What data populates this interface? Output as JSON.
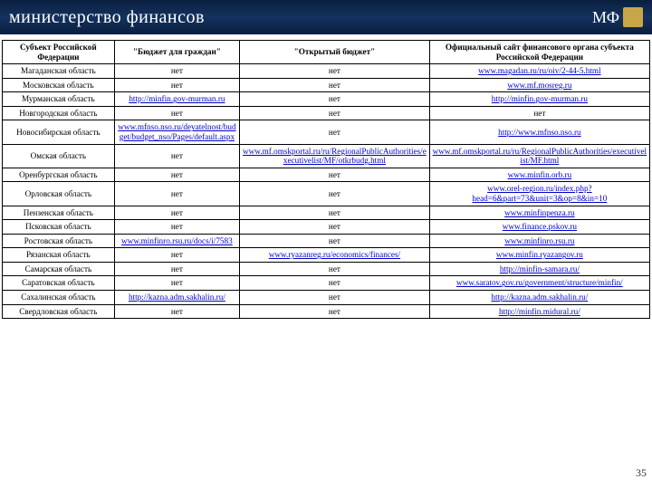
{
  "header": {
    "title": "министерство финансов",
    "logo_text": "МФ"
  },
  "page_number": "35",
  "columns": [
    "Субъект Российской Федерации",
    "\"Бюджет для граждан\"",
    "\"Открытый бюджет\"",
    "Официальный сайт финансового органа субъекта Российской Федерации"
  ],
  "rows": [
    {
      "region": "Магаданская область",
      "c2": "нет",
      "c2link": false,
      "c3": "нет",
      "c3link": false,
      "c4": "www.magadan.ru/ru/oiv/2-44-5.html",
      "c4link": true
    },
    {
      "region": "Московская область",
      "c2": "нет",
      "c2link": false,
      "c3": "нет",
      "c3link": false,
      "c4": "www.mf.mosreg.ru",
      "c4link": true
    },
    {
      "region": "Мурманская область",
      "c2": "http://minfin.gov-murman.ru",
      "c2link": true,
      "c3": "нет",
      "c3link": false,
      "c4": "http://minfin.gov-murman.ru",
      "c4link": true
    },
    {
      "region": "Новгородская область",
      "c2": "нет",
      "c2link": false,
      "c3": "нет",
      "c3link": false,
      "c4": "нет",
      "c4link": false
    },
    {
      "region": "Новосибирская область",
      "c2": "www.mfnso.nso.ru/deyatelnost/budget/budget_nso/Pages/default.aspx",
      "c2link": true,
      "c3": "нет",
      "c3link": false,
      "c4": "http://www.mfnso.nso.ru",
      "c4link": true
    },
    {
      "region": "Омская область",
      "c2": "нет",
      "c2link": false,
      "c3": "www.mf.omskportal.ru/ru/RegionalPublicAuthorities/executivelist/MF/otkrbudg.html",
      "c3link": true,
      "c4": "www.mf.omskportal.ru/ru/RegionalPublicAuthorities/executivelist/MF.html",
      "c4link": true
    },
    {
      "region": "Оренбургская область",
      "c2": "нет",
      "c2link": false,
      "c3": "нет",
      "c3link": false,
      "c4": "www.minfin.orb.ru",
      "c4link": true
    },
    {
      "region": "Орловская область",
      "c2": "нет",
      "c2link": false,
      "c3": "нет",
      "c3link": false,
      "c4": "www.orel-region.ru/index.php?head=6&part=73&unit=3&op=8&in=10",
      "c4link": true
    },
    {
      "region": "Пензенская область",
      "c2": "нет",
      "c2link": false,
      "c3": "нет",
      "c3link": false,
      "c4": "www.minfinpenza.ru",
      "c4link": true
    },
    {
      "region": "Псковская область",
      "c2": "нет",
      "c2link": false,
      "c3": "нет",
      "c3link": false,
      "c4": "www.finance.pskov.ru",
      "c4link": true
    },
    {
      "region": "Ростовская область",
      "c2": "www.minfinro.rsu.ru/docs/i/7583",
      "c2link": true,
      "c3": "нет",
      "c3link": false,
      "c4": "www.minfinro.rsu.ru",
      "c4link": true
    },
    {
      "region": "Рязанская область",
      "c2": "нет",
      "c2link": false,
      "c3": "www.ryazanreg.ru/economics/finances/",
      "c3link": true,
      "c4": "www.minfin.ryazangov.ru",
      "c4link": true
    },
    {
      "region": "Самарская область",
      "c2": "нет",
      "c2link": false,
      "c3": "нет",
      "c3link": false,
      "c4": "http://minfin-samara.ru/",
      "c4link": true
    },
    {
      "region": "Саратовская область",
      "c2": "нет",
      "c2link": false,
      "c3": "нет",
      "c3link": false,
      "c4": "www.saratov.gov.ru/government/structure/minfin/",
      "c4link": true
    },
    {
      "region": "Сахалинская область",
      "c2": "http://kazna.adm.sakhalin.ru/",
      "c2link": true,
      "c3": "нет",
      "c3link": false,
      "c4": "http://kazna.adm.sakhalin.ru/",
      "c4link": true
    },
    {
      "region": "Свердловская область",
      "c2": "нет",
      "c2link": false,
      "c3": "нет",
      "c3link": false,
      "c4": "http://minfin.midural.ru/",
      "c4link": true
    }
  ]
}
